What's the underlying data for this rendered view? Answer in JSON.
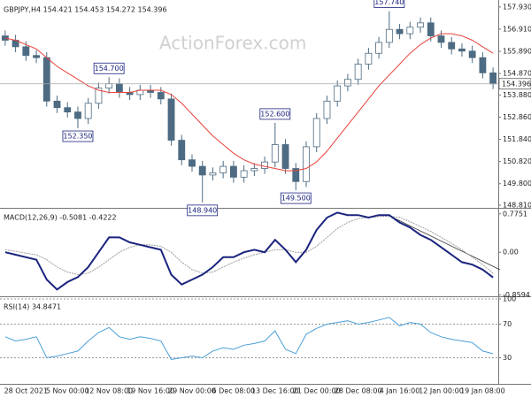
{
  "chart_data": [
    {
      "type": "candlestick",
      "title": "GBPJPY,H4 154.421 154.453 154.272 154.396",
      "watermark": "ActionForex.com",
      "categories": [
        null,
        null,
        "28 Oct 2021",
        null,
        null,
        null,
        "5 Nov 00:00",
        null,
        null,
        null,
        "12 Nov 08:00",
        null,
        null,
        null,
        "19 Nov 16:00",
        null,
        null,
        null,
        "29 Nov 00:00",
        null,
        null,
        null,
        "6 Dec 08:00",
        null,
        null,
        null,
        "13 Dec 16:00",
        null,
        null,
        null,
        "21 Dec 00:00",
        null,
        null,
        null,
        "28 Dec 08:00",
        null,
        null,
        null,
        "4 Jan 16:00",
        null,
        null,
        null,
        "12 Jan 00:00",
        null,
        null,
        null,
        "19 Jan 08:00",
        null
      ],
      "open": [
        156.6,
        156.4,
        156.1,
        155.7,
        155.6,
        153.6,
        153.3,
        153.1,
        152.8,
        153.5,
        154.2,
        154.4,
        154.0,
        153.9,
        154.1,
        154.0,
        153.7,
        151.8,
        150.9,
        150.6,
        150.2,
        150.3,
        150.6,
        150.1,
        150.4,
        150.5,
        150.8,
        151.6,
        150.5,
        149.9,
        151.5,
        152.8,
        153.6,
        154.3,
        154.6,
        155.3,
        155.8,
        156.3,
        156.9,
        156.7,
        157.0,
        157.2,
        156.6,
        156.3,
        156.0,
        155.9,
        155.6,
        154.9
      ],
      "high": [
        156.85,
        156.65,
        156.35,
        155.95,
        155.85,
        153.85,
        153.55,
        153.35,
        153.75,
        154.45,
        154.7,
        154.65,
        154.25,
        154.35,
        154.35,
        154.25,
        153.95,
        152.05,
        151.15,
        150.85,
        150.55,
        150.85,
        150.85,
        150.65,
        150.75,
        151.05,
        152.6,
        151.85,
        150.75,
        151.75,
        153.05,
        153.85,
        154.55,
        154.85,
        155.55,
        156.05,
        156.55,
        157.74,
        157.15,
        157.25,
        157.45,
        157.45,
        156.85,
        156.55,
        156.25,
        156.15,
        155.85,
        155.15
      ],
      "low": [
        156.15,
        155.85,
        155.45,
        155.35,
        153.35,
        153.05,
        152.85,
        152.35,
        152.55,
        153.25,
        153.95,
        153.75,
        153.65,
        153.65,
        153.75,
        153.45,
        151.55,
        150.65,
        150.35,
        148.94,
        149.95,
        150.05,
        149.85,
        149.85,
        150.15,
        150.25,
        150.55,
        150.25,
        149.5,
        149.65,
        151.25,
        152.55,
        153.35,
        154.05,
        154.35,
        155.05,
        155.55,
        156.05,
        156.45,
        156.45,
        156.75,
        156.35,
        156.05,
        155.75,
        155.65,
        155.35,
        154.65,
        154.15
      ],
      "close": [
        156.4,
        156.1,
        155.7,
        155.6,
        153.6,
        153.3,
        153.1,
        152.8,
        153.5,
        154.2,
        154.4,
        154.0,
        153.9,
        154.1,
        154.0,
        153.7,
        151.8,
        150.9,
        150.6,
        150.2,
        150.3,
        150.6,
        150.1,
        150.4,
        150.5,
        150.8,
        151.6,
        150.5,
        149.9,
        151.5,
        152.8,
        153.6,
        154.3,
        154.6,
        155.3,
        155.8,
        156.3,
        156.9,
        156.7,
        157.0,
        157.2,
        156.6,
        156.3,
        156.0,
        155.9,
        155.6,
        154.9,
        154.396
      ],
      "color": "#4d6b82",
      "overlay": {
        "color": "#e8423a",
        "values": [
          156.5,
          156.4,
          156.2,
          156.0,
          155.6,
          155.2,
          154.9,
          154.6,
          154.3,
          154.1,
          154.0,
          154.0,
          154.0,
          154.1,
          154.1,
          154.1,
          153.9,
          153.5,
          153.0,
          152.5,
          152.0,
          151.6,
          151.2,
          150.9,
          150.7,
          150.6,
          150.5,
          150.4,
          150.4,
          150.5,
          150.8,
          151.3,
          151.9,
          152.5,
          153.1,
          153.7,
          154.3,
          154.8,
          155.3,
          155.8,
          156.2,
          156.5,
          156.7,
          156.7,
          156.6,
          156.4,
          156.1,
          155.8
        ]
      },
      "annotations": [
        {
          "value": 157.74,
          "label": "157.740"
        },
        {
          "value": 154.7,
          "label": "154.700"
        },
        {
          "value": 152.6,
          "label": "152.600"
        },
        {
          "value": 152.35,
          "label": "152.350"
        },
        {
          "value": 149.5,
          "label": "149.500"
        },
        {
          "value": 148.94,
          "label": "148.940"
        }
      ],
      "ylim": [
        148.69,
        158.17
      ],
      "yticks": [
        {
          "value": 157.93,
          "label": "157.930"
        },
        {
          "value": 156.91,
          "label": "156.910"
        },
        {
          "value": 155.89,
          "label": "155.890"
        },
        {
          "value": 154.87,
          "label": "154.870"
        },
        {
          "value": 153.88,
          "label": "153.880"
        },
        {
          "value": 152.86,
          "label": "152.860"
        },
        {
          "value": 151.84,
          "label": "151.840"
        },
        {
          "value": 150.82,
          "label": "150.820"
        },
        {
          "value": 149.8,
          "label": "149.800"
        },
        {
          "value": 148.81,
          "label": "148.810"
        }
      ],
      "grid": false
    },
    {
      "type": "macd",
      "title": "MACD(12,26,9) -0.5081 -0.4222",
      "macd": {
        "color": "#1a237e",
        "values": [
          0.0,
          -0.05,
          -0.1,
          -0.15,
          -0.55,
          -0.75,
          -0.6,
          -0.5,
          -0.3,
          0.0,
          0.3,
          0.3,
          0.2,
          0.15,
          0.1,
          0.05,
          -0.45,
          -0.65,
          -0.55,
          -0.45,
          -0.3,
          -0.1,
          -0.1,
          0.0,
          0.05,
          0.0,
          0.25,
          0.05,
          -0.2,
          0.05,
          0.45,
          0.7,
          0.8,
          0.75,
          0.75,
          0.7,
          0.75,
          0.75,
          0.6,
          0.5,
          0.35,
          0.25,
          0.1,
          -0.05,
          -0.2,
          -0.25,
          -0.35,
          -0.5081
        ]
      },
      "signal": {
        "color": "#9e9e9e",
        "values": [
          0.05,
          0.02,
          -0.02,
          -0.05,
          -0.15,
          -0.3,
          -0.4,
          -0.45,
          -0.42,
          -0.3,
          -0.15,
          0.0,
          0.1,
          0.15,
          0.15,
          0.12,
          0.0,
          -0.2,
          -0.35,
          -0.42,
          -0.4,
          -0.3,
          -0.2,
          -0.12,
          -0.05,
          0.0,
          0.05,
          0.05,
          0.0,
          0.0,
          0.12,
          0.3,
          0.48,
          0.6,
          0.68,
          0.7,
          0.72,
          0.73,
          0.7,
          0.62,
          0.52,
          0.42,
          0.3,
          0.18,
          0.05,
          -0.1,
          -0.25,
          -0.4222
        ]
      },
      "ylim": [
        -0.87,
        0.86
      ],
      "yticks": [
        {
          "value": 0.7751,
          "label": "0.7751"
        },
        {
          "value": 0,
          "label": "0.00"
        },
        {
          "value": -0.8594,
          "label": "-0.8594"
        }
      ],
      "grid": false
    },
    {
      "type": "rsi",
      "title": "RSI(14) 34.8471",
      "color": "#4a9fd8",
      "values": [
        55,
        50,
        52,
        55,
        30,
        32,
        35,
        38,
        50,
        60,
        66,
        55,
        52,
        55,
        53,
        50,
        28,
        30,
        32,
        30,
        38,
        42,
        40,
        45,
        47,
        50,
        62,
        40,
        35,
        58,
        65,
        70,
        72,
        74,
        70,
        72,
        75,
        78,
        68,
        72,
        70,
        60,
        55,
        52,
        50,
        48,
        38,
        34.8471
      ],
      "ylim": [
        0,
        100
      ],
      "yticks": [
        100,
        70,
        30
      ],
      "grid": true
    }
  ]
}
